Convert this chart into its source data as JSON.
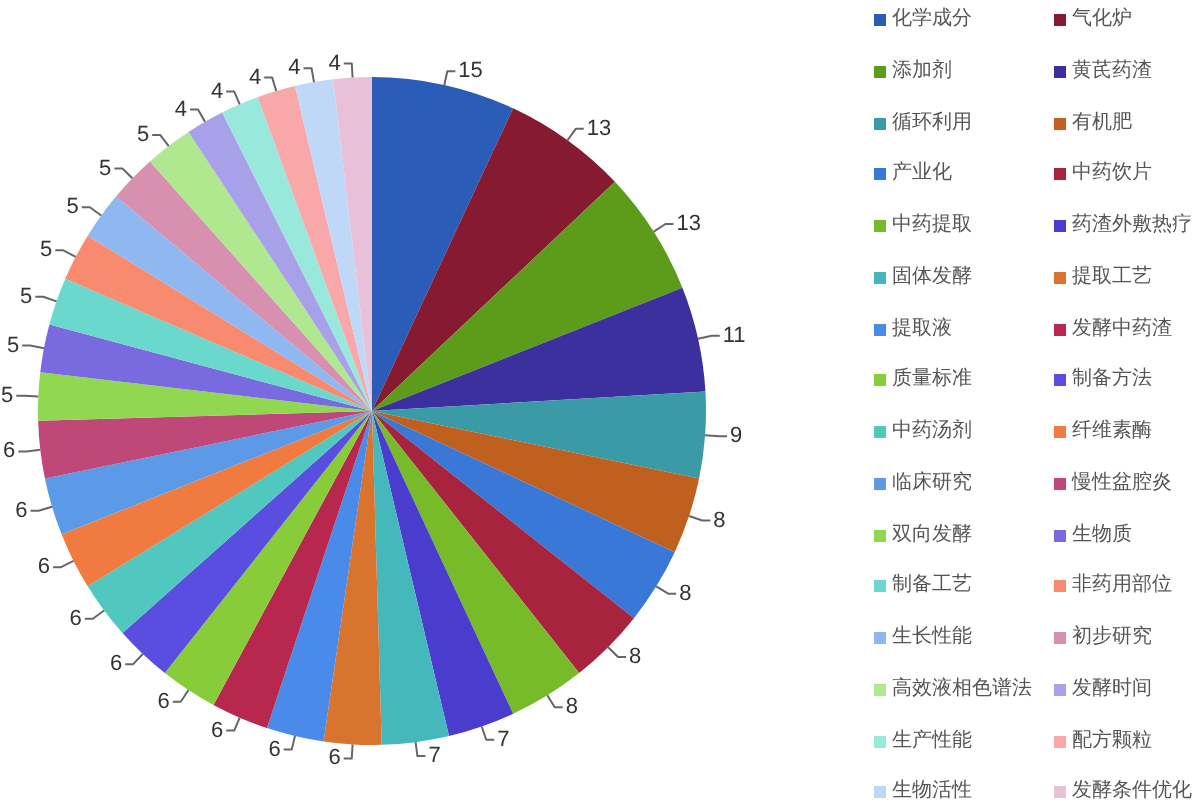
{
  "chart_data": {
    "type": "pie",
    "categories": [
      "化学成分",
      "气化炉",
      "添加剂",
      "黄芪药渣",
      "循环利用",
      "有机肥",
      "产业化",
      "中药饮片",
      "中药提取",
      "药渣外敷热疗",
      "固体发酵",
      "提取工艺",
      "提取液",
      "发酵中药渣",
      "质量标准",
      "制备方法",
      "中药汤剂",
      "纤维素酶",
      "临床研究",
      "慢性盆腔炎",
      "双向发酵",
      "生物质",
      "制备工艺",
      "非药用部位",
      "生长性能",
      "初步研究",
      "高效液相色谱法",
      "发酵时间",
      "生产性能",
      "配方颗粒",
      "生物活性",
      "发酵条件优化"
    ],
    "values": [
      15,
      13,
      13,
      11,
      9,
      8,
      8,
      8,
      8,
      7,
      7,
      6,
      6,
      6,
      6,
      6,
      6,
      6,
      6,
      6,
      5,
      5,
      5,
      5,
      5,
      5,
      5,
      4,
      4,
      4,
      4,
      4
    ],
    "colors": [
      "#2b5cb8",
      "#861a30",
      "#5d9c1a",
      "#3c2f9e",
      "#3a9aa5",
      "#c0601e",
      "#3a78d8",
      "#a8243e",
      "#78bb2a",
      "#4a3ccc",
      "#45b8bc",
      "#d9742e",
      "#4a8ae8",
      "#b8284e",
      "#88cc3a",
      "#5a4ee0",
      "#50c8c0",
      "#f07a40",
      "#5c9ae8",
      "#c04878",
      "#90d850",
      "#7a6ae0",
      "#6ad8cc",
      "#f88a70",
      "#90b8f0",
      "#d890b0",
      "#b0e890",
      "#a8a0e8",
      "#98e8dc",
      "#f8a8a8",
      "#c0d8f8",
      "#e8c0d8"
    ],
    "data_labels": true,
    "legend": "right"
  }
}
